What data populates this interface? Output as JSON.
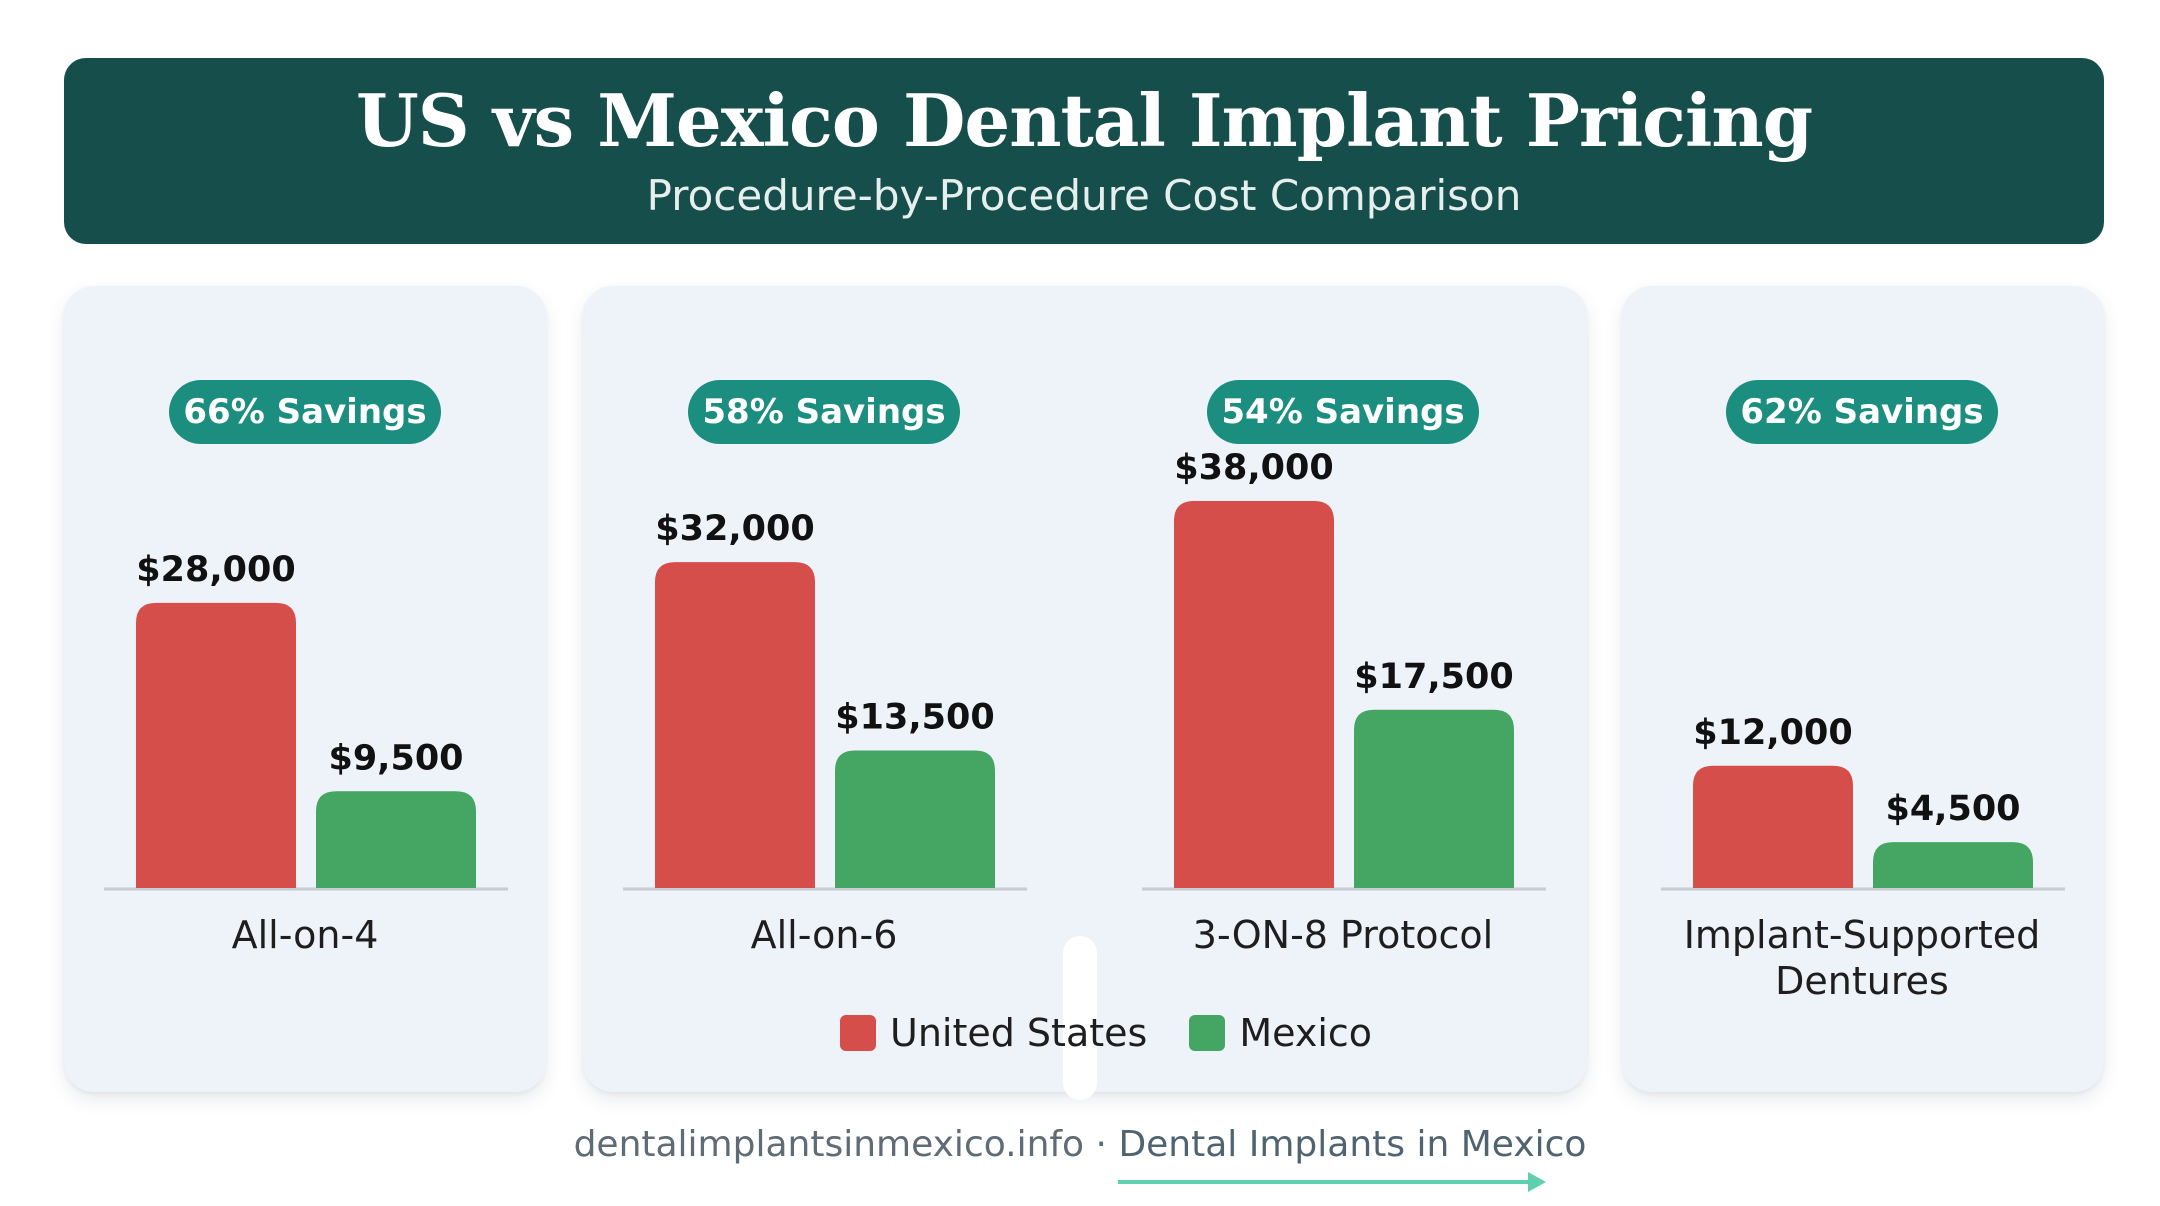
{
  "header": {
    "title": "US vs Mexico Dental Implant Pricing",
    "subtitle": "Procedure-by-Procedure Cost Comparison"
  },
  "colors": {
    "us": "#d64e4a",
    "mexico": "#45a664",
    "badge": "#1b8e7f",
    "header": "#154e4b"
  },
  "chart_data": {
    "type": "bar",
    "categories": [
      "All-on-4",
      "All-on-6",
      "3-ON-8 Protocol",
      "Implant-Supported Dentures"
    ],
    "series": [
      {
        "name": "United States",
        "values": [
          28000,
          32000,
          38000,
          12000
        ],
        "labels": [
          "$28,000",
          "$32,000",
          "$38,000",
          "$12,000"
        ]
      },
      {
        "name": "Mexico",
        "values": [
          9500,
          13500,
          17500,
          4500
        ],
        "labels": [
          "$9,500",
          "$13,500",
          "$17,500",
          "$4,500"
        ]
      }
    ],
    "savings": [
      "66% Savings",
      "58% Savings",
      "54% Savings",
      "62% Savings"
    ],
    "ylim": [
      0,
      38000
    ],
    "grid": false,
    "legend": "bottom"
  },
  "legend": {
    "us_label": "United States",
    "mexico_label": "Mexico"
  },
  "footer": {
    "site": "dentalimplantsinmexico.info",
    "separator": " · ",
    "name": "Dental Implants in Mexico"
  }
}
